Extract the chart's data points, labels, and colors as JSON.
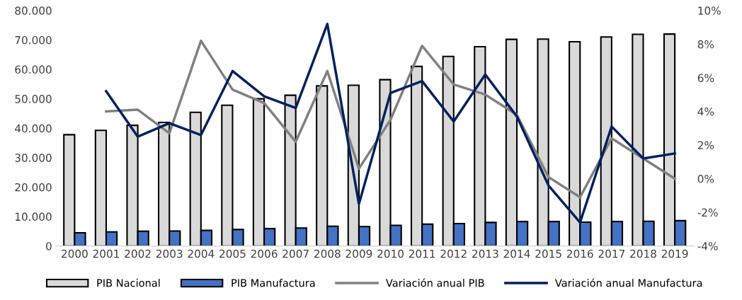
{
  "chart_data": {
    "type": "bar",
    "categories": [
      "2000",
      "2001",
      "2002",
      "2003",
      "2004",
      "2005",
      "2006",
      "2007",
      "2008",
      "2009",
      "2010",
      "2011",
      "2012",
      "2013",
      "2014",
      "2015",
      "2016",
      "2017",
      "2018",
      "2019"
    ],
    "series": [
      {
        "name": "PIB Nacional",
        "color": "#d9d9d9",
        "values": [
          37800,
          39300,
          41000,
          42000,
          45400,
          47800,
          50000,
          51200,
          54400,
          54600,
          56500,
          61000,
          64400,
          67700,
          70200,
          70300,
          69400,
          71000,
          71900,
          72000
        ]
      },
      {
        "name": "PIB Manufactura",
        "color": "#4472c4",
        "values": [
          4500,
          4800,
          5000,
          5100,
          5300,
          5600,
          5900,
          6100,
          6700,
          6600,
          7000,
          7400,
          7600,
          8000,
          8300,
          8300,
          8100,
          8300,
          8400,
          8600
        ]
      },
      {
        "name": "Variación anual PIB",
        "type": "line",
        "axis": "y2",
        "color": "#808080",
        "values": [
          null,
          4.0,
          4.1,
          2.7,
          8.2,
          5.3,
          4.5,
          2.2,
          6.4,
          0.6,
          3.5,
          7.9,
          5.6,
          5.0,
          3.8,
          0.1,
          -1.1,
          2.4,
          1.2,
          0.0
        ]
      },
      {
        "name": "Variación anual Manufactura",
        "type": "line",
        "axis": "y2",
        "color": "#002060",
        "values": [
          null,
          5.2,
          2.5,
          3.3,
          2.6,
          6.4,
          4.9,
          4.2,
          9.2,
          -1.5,
          5.1,
          5.8,
          3.4,
          6.2,
          3.7,
          -0.4,
          -2.6,
          3.1,
          1.2,
          1.5
        ]
      }
    ],
    "ylim": [
      0,
      80000
    ],
    "yticks": [
      {
        "value": 0,
        "label": "0"
      },
      {
        "value": 10000,
        "label": "10.000"
      },
      {
        "value": 20000,
        "label": "20.000"
      },
      {
        "value": 30000,
        "label": "30.000"
      },
      {
        "value": 40000,
        "label": "40.000"
      },
      {
        "value": 50000,
        "label": "50.000"
      },
      {
        "value": 60000,
        "label": "60.000"
      },
      {
        "value": 70000,
        "label": "70.000"
      },
      {
        "value": 80000,
        "label": "80.000"
      }
    ],
    "y2lim": [
      -4,
      10
    ],
    "y2ticks": [
      {
        "value": -4,
        "label": "-4%"
      },
      {
        "value": -2,
        "label": "-2%"
      },
      {
        "value": 0,
        "label": "0%"
      },
      {
        "value": 2,
        "label": "2%"
      },
      {
        "value": 4,
        "label": "4%"
      },
      {
        "value": 6,
        "label": "6%"
      },
      {
        "value": 8,
        "label": "8%"
      },
      {
        "value": 10,
        "label": "10%"
      }
    ],
    "grid": false,
    "legend": "bottom",
    "line_style": "solid",
    "marker": "none"
  }
}
